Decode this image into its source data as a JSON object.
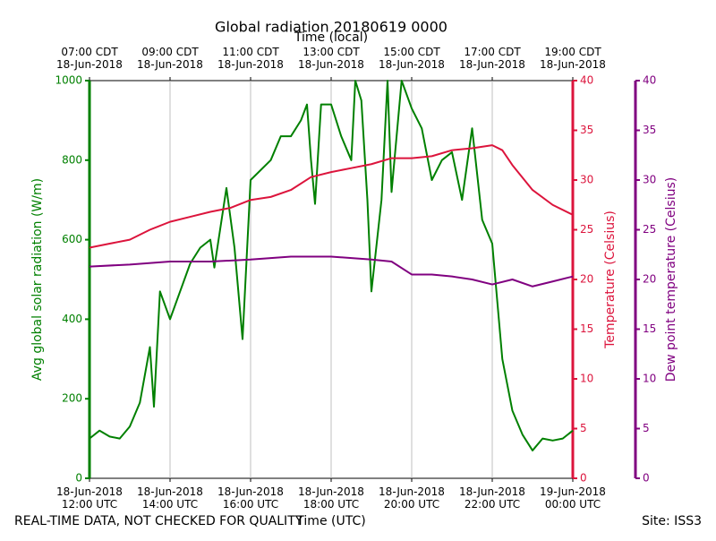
{
  "chart_data": {
    "type": "line",
    "title": "Global radiation 20180619 0000",
    "x_label": "Time (UTC)",
    "x2_label": "Time (local)",
    "footer_left": "REAL-TIME DATA, NOT CHECKED FOR QUALITY",
    "footer_right": "Site: ISS3",
    "xlim": [
      12,
      24
    ],
    "xticks": [
      {
        "value": 12,
        "label": "18-Jun-2018\n12:00 UTC"
      },
      {
        "value": 14,
        "label": "18-Jun-2018\n14:00 UTC"
      },
      {
        "value": 16,
        "label": "18-Jun-2018\n16:00 UTC"
      },
      {
        "value": 18,
        "label": "18-Jun-2018\n18:00 UTC"
      },
      {
        "value": 20,
        "label": "18-Jun-2018\n20:00 UTC"
      },
      {
        "value": 22,
        "label": "18-Jun-2018\n22:00 UTC"
      },
      {
        "value": 24,
        "label": "19-Jun-2018\n00:00 UTC"
      }
    ],
    "x2ticks": [
      {
        "value": 12,
        "label": "07:00 CDT\n18-Jun-2018"
      },
      {
        "value": 14,
        "label": "09:00 CDT\n18-Jun-2018"
      },
      {
        "value": 16,
        "label": "11:00 CDT\n18-Jun-2018"
      },
      {
        "value": 18,
        "label": "13:00 CDT\n18-Jun-2018"
      },
      {
        "value": 20,
        "label": "15:00 CDT\n18-Jun-2018"
      },
      {
        "value": 22,
        "label": "17:00 CDT\n18-Jun-2018"
      },
      {
        "value": 24,
        "label": "19:00 CDT\n18-Jun-2018"
      }
    ],
    "grid": true,
    "axes": [
      {
        "label": "Avg global solar radiation (W/m)",
        "color": "green",
        "ylim": [
          0,
          1000
        ],
        "yticks": [
          0,
          200,
          400,
          600,
          800,
          1000
        ]
      },
      {
        "label": "Temperature (Celsius)",
        "color": "crimson",
        "ylim": [
          0,
          40
        ],
        "yticks": [
          0,
          5,
          10,
          15,
          20,
          25,
          30,
          35,
          40
        ]
      },
      {
        "label": "Dew point temperature (Celsius)",
        "color": "purple",
        "ylim": [
          0,
          40
        ],
        "yticks": [
          0,
          5,
          10,
          15,
          20,
          25,
          30,
          35,
          40
        ]
      }
    ],
    "series": [
      {
        "axis": 0,
        "color": "green",
        "x": [
          12,
          12.25,
          12.5,
          12.75,
          13,
          13.25,
          13.5,
          13.6,
          13.75,
          14,
          14.25,
          14.5,
          14.75,
          15,
          15.1,
          15.4,
          15.6,
          15.8,
          16,
          16.5,
          16.75,
          17,
          17.25,
          17.4,
          17.5,
          17.6,
          17.75,
          18,
          18.25,
          18.5,
          18.6,
          18.75,
          18.9,
          19,
          19.25,
          19.4,
          19.5,
          19.75,
          20,
          20.25,
          20.5,
          20.75,
          21,
          21.25,
          21.5,
          21.75,
          22,
          22.25,
          22.5,
          22.75,
          23,
          23.25,
          23.5,
          23.75,
          24
        ],
        "values": [
          100,
          120,
          105,
          100,
          130,
          190,
          330,
          180,
          470,
          400,
          470,
          540,
          580,
          600,
          530,
          730,
          580,
          350,
          750,
          800,
          860,
          860,
          900,
          940,
          800,
          690,
          940,
          940,
          860,
          800,
          1000,
          950,
          700,
          470,
          700,
          1000,
          720,
          1000,
          930,
          880,
          750,
          800,
          820,
          700,
          880,
          650,
          590,
          300,
          170,
          110,
          70,
          100,
          95,
          100,
          120
        ]
      },
      {
        "axis": 1,
        "color": "crimson",
        "x": [
          12,
          12.5,
          13,
          13.5,
          14,
          14.5,
          15,
          15.5,
          16,
          16.5,
          17,
          17.5,
          18,
          18.5,
          19,
          19.5,
          20,
          20.5,
          21,
          21.5,
          22,
          22.25,
          22.5,
          23,
          23.5,
          24
        ],
        "values": [
          23.2,
          23.6,
          24.0,
          25.0,
          25.8,
          26.3,
          26.8,
          27.2,
          28.0,
          28.3,
          29.0,
          30.3,
          30.8,
          31.2,
          31.6,
          32.2,
          32.2,
          32.4,
          33.0,
          33.2,
          33.5,
          33.0,
          31.5,
          29.0,
          27.5,
          26.5
        ]
      },
      {
        "axis": 2,
        "color": "purple",
        "x": [
          12,
          13,
          14,
          15,
          16,
          17,
          18,
          19,
          19.5,
          20,
          20.5,
          21,
          21.5,
          22,
          22.5,
          23,
          23.5,
          24
        ],
        "values": [
          21.3,
          21.5,
          21.8,
          21.8,
          22.0,
          22.3,
          22.3,
          22.0,
          21.8,
          20.5,
          20.5,
          20.3,
          20.0,
          19.5,
          20.0,
          19.3,
          19.8,
          20.3
        ]
      }
    ]
  }
}
